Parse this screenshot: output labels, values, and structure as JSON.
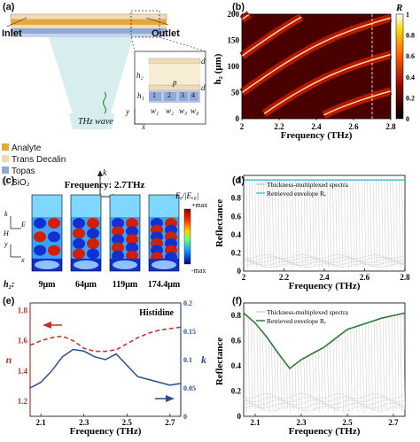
{
  "panel_a": {
    "label": "(a)",
    "inlet": "Inlet",
    "outlet": "Outlet",
    "thz_wave": "THz wave",
    "legend": [
      {
        "name": "Analyte",
        "color": "#e6a63a"
      },
      {
        "name": "Trans Decalin",
        "color": "#f0dcb4"
      },
      {
        "name": "Topas",
        "color": "#8fa9d8"
      },
      {
        "name": "SiO₂",
        "color": "#d6dbe6"
      }
    ],
    "axes": {
      "k": "k",
      "h": "H",
      "e": "E",
      "x": "x",
      "y": "y"
    },
    "inset": {
      "h2": "h₂",
      "d_top": "d",
      "p": "p",
      "d_bot": "d",
      "h1": "h₁",
      "w1": "w₁",
      "w2": "w₂",
      "w3": "w₃",
      "w4": "w₄",
      "cells": [
        "1",
        "2",
        "3",
        "4"
      ]
    }
  },
  "panel_b": {
    "label": "(b)",
    "ylabel": "h₂ (μm)",
    "xlabel": "Frequency (THz)",
    "colorbar_label": "R",
    "chart_data": {
      "type": "heatmap",
      "x_ticks": [
        "2",
        "2.2",
        "2.4",
        "2.6",
        "2.8"
      ],
      "y_ticks": [
        "0",
        "50",
        "100",
        "150",
        "200"
      ],
      "colorbar_ticks": [
        "0",
        "0.2",
        "0.4",
        "0.6",
        "0.8",
        "1"
      ],
      "xlim": [
        2,
        2.8
      ],
      "ylim": [
        0,
        200
      ]
    }
  },
  "panel_c": {
    "label": "(c)",
    "title": "Frequency: 2.7THz",
    "colorbar_label": "Eᵧ/|Eₓ₀|",
    "cb_max": "+max",
    "cb_min": "-max",
    "h2_prefix": "h₂:",
    "h2_values": [
      "9μm",
      "64μm",
      "119μm",
      "174.4μm"
    ],
    "axes": {
      "k": "k",
      "h": "H",
      "e": "E",
      "x": "x",
      "y": "y"
    }
  },
  "panel_d": {
    "label": "(d)",
    "ylabel": "Reflectance",
    "xlabel": "Frequency (THz)",
    "legend": [
      "Thickness-multiplexed spectra",
      "Retrieved envelope Rₑ"
    ],
    "chart_data": {
      "type": "line",
      "x_ticks": [
        "2",
        "2.2",
        "2.4",
        "2.6",
        "2.8"
      ],
      "y_ticks": [
        "0",
        "0.2",
        "0.4",
        "0.6",
        "0.8",
        "1"
      ],
      "xlim": [
        2,
        2.8
      ],
      "ylim": [
        0,
        1.05
      ],
      "series": [
        {
          "name": "Retrieved envelope Rₑ",
          "x": [
            2.0,
            2.8
          ],
          "y": [
            1.0,
            1.0
          ]
        }
      ]
    }
  },
  "panel_e": {
    "label": "(e)",
    "title": "Histidine",
    "ylabel_left": "n",
    "ylabel_right": "k",
    "xlabel": "Frequency (THz)",
    "chart_data": {
      "type": "line",
      "x_ticks": [
        "2.1",
        "2.3",
        "2.5",
        "2.7"
      ],
      "y_left_ticks": [
        "1.2",
        "1.4",
        "1.6",
        "1.8"
      ],
      "y_right_ticks": [
        "0",
        "0.05",
        "0.1",
        "0.15",
        "0.2"
      ],
      "xlim": [
        2.05,
        2.75
      ],
      "ylim_left": [
        1.1,
        1.85
      ],
      "ylim_right": [
        0,
        0.2
      ],
      "series": [
        {
          "name": "n",
          "x": [
            2.05,
            2.1,
            2.15,
            2.2,
            2.25,
            2.3,
            2.35,
            2.4,
            2.45,
            2.5,
            2.55,
            2.6,
            2.65,
            2.7,
            2.75
          ],
          "y": [
            1.57,
            1.6,
            1.62,
            1.63,
            1.6,
            1.55,
            1.53,
            1.53,
            1.54,
            1.58,
            1.62,
            1.65,
            1.67,
            1.68,
            1.69
          ]
        },
        {
          "name": "k",
          "x": [
            2.05,
            2.1,
            2.15,
            2.2,
            2.25,
            2.3,
            2.35,
            2.4,
            2.45,
            2.5,
            2.55,
            2.6,
            2.65,
            2.7,
            2.75
          ],
          "y": [
            0.05,
            0.06,
            0.08,
            0.105,
            0.118,
            0.115,
            0.105,
            0.1,
            0.11,
            0.09,
            0.07,
            0.065,
            0.06,
            0.055,
            0.058
          ]
        }
      ]
    }
  },
  "panel_f": {
    "label": "(f)",
    "ylabel": "Reflectance",
    "xlabel": "Frequency (THz)",
    "legend": [
      "Thickness-multiplexed spectra",
      "Retrieved envelope Rₑ"
    ],
    "chart_data": {
      "type": "line",
      "x_ticks": [
        "2.1",
        "2.3",
        "2.5",
        "2.7"
      ],
      "y_ticks": [
        "0",
        "0.2",
        "0.4",
        "0.6",
        "0.8"
      ],
      "xlim": [
        2.05,
        2.75
      ],
      "ylim": [
        0,
        0.9
      ],
      "series": [
        {
          "name": "Retrieved envelope Rₑ",
          "x": [
            2.05,
            2.1,
            2.15,
            2.2,
            2.25,
            2.3,
            2.35,
            2.4,
            2.45,
            2.5,
            2.55,
            2.6,
            2.65,
            2.7,
            2.75
          ],
          "y": [
            0.82,
            0.74,
            0.63,
            0.5,
            0.38,
            0.45,
            0.5,
            0.55,
            0.62,
            0.69,
            0.72,
            0.75,
            0.78,
            0.8,
            0.82
          ]
        }
      ]
    }
  },
  "colors": {
    "red": "#c0302a",
    "blue": "#2b4f8c",
    "green": "#2f7a35",
    "cyan": "#4fc7c7"
  }
}
